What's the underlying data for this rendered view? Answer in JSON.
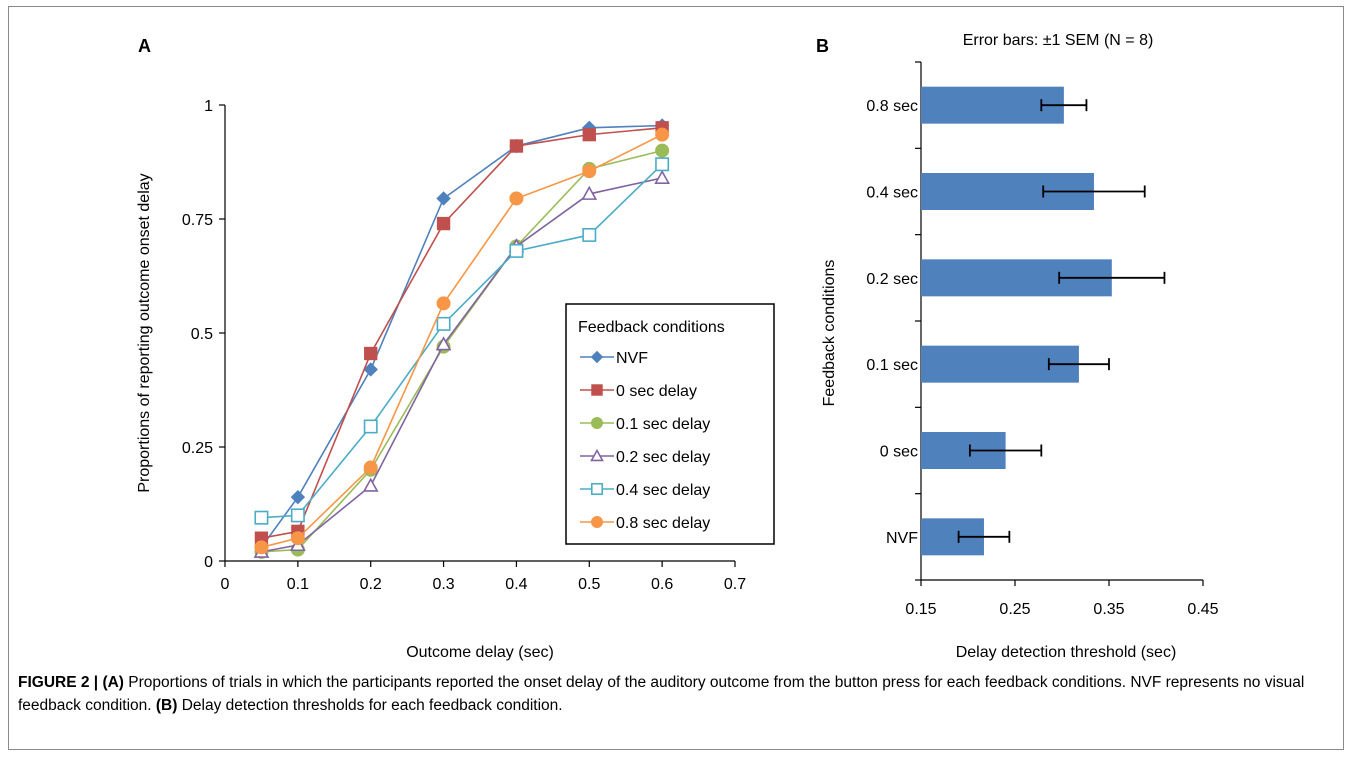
{
  "chart_data": [
    {
      "panel_label": "A",
      "type": "line",
      "title": "",
      "xlabel": "Outcome delay (sec)",
      "ylabel": "Proportions of reporting outcome onset delay",
      "xlim": [
        0,
        0.7
      ],
      "ylim": [
        0,
        1
      ],
      "x_ticks": [
        "0",
        "0.1",
        "0.2",
        "0.3",
        "0.4",
        "0.5",
        "0.6",
        "0.7"
      ],
      "x_tick_values": [
        0,
        0.1,
        0.2,
        0.3,
        0.4,
        0.5,
        0.6,
        0.7
      ],
      "y_ticks": [
        "0",
        "0.25",
        "0.5",
        "0.75",
        "1"
      ],
      "y_tick_values": [
        0,
        0.25,
        0.5,
        0.75,
        1
      ],
      "grid": false,
      "legend_title": "Feedback conditions",
      "legend_position": "bottom-right",
      "x": [
        0.05,
        0.1,
        0.2,
        0.3,
        0.4,
        0.5,
        0.6
      ],
      "series": [
        {
          "name": "NVF",
          "marker": "diamond",
          "filled": true,
          "color": "#4f81bd",
          "values": [
            0.03,
            0.14,
            0.42,
            0.795,
            0.91,
            0.95,
            0.955
          ]
        },
        {
          "name": "0 sec delay",
          "marker": "square",
          "filled": true,
          "color": "#c0504d",
          "values": [
            0.05,
            0.065,
            0.455,
            0.74,
            0.91,
            0.935,
            0.95
          ]
        },
        {
          "name": "0.1 sec delay",
          "marker": "circle",
          "filled": true,
          "color": "#9bbb59",
          "values": [
            0.02,
            0.025,
            0.2,
            0.47,
            0.69,
            0.86,
            0.9
          ]
        },
        {
          "name": "0.2 sec delay",
          "marker": "triangle",
          "filled": false,
          "color": "#8064a2",
          "values": [
            0.02,
            0.035,
            0.165,
            0.475,
            0.69,
            0.805,
            0.84
          ]
        },
        {
          "name": "0.4 sec delay",
          "marker": "square",
          "filled": false,
          "color": "#4bacc6",
          "values": [
            0.095,
            0.1,
            0.295,
            0.52,
            0.68,
            0.715,
            0.87
          ]
        },
        {
          "name": "0.8 sec delay",
          "marker": "circle",
          "filled": true,
          "color": "#f79646",
          "values": [
            0.03,
            0.05,
            0.205,
            0.565,
            0.795,
            0.855,
            0.935
          ]
        }
      ]
    },
    {
      "panel_label": "B",
      "type": "bar",
      "orientation": "horizontal",
      "title": "Error bars: ±1 SEM (N = 8)",
      "xlabel": "Delay detection threshold (sec)",
      "ylabel": "Feedback conditions",
      "xlim": [
        0.15,
        0.45
      ],
      "x_ticks": [
        "0.15",
        "0.25",
        "0.35",
        "0.45"
      ],
      "x_tick_values": [
        0.15,
        0.25,
        0.35,
        0.45
      ],
      "grid": false,
      "bar_color": "#4f81bd",
      "categories": [
        "0.8 sec",
        "0.4 sec",
        "0.2 sec",
        "0.1 sec",
        "0 sec",
        "NVF"
      ],
      "values": [
        0.302,
        0.334,
        0.353,
        0.318,
        0.24,
        0.217
      ],
      "errors": [
        0.024,
        0.054,
        0.056,
        0.032,
        0.038,
        0.027
      ]
    }
  ],
  "caption": {
    "head": "FIGURE 2 |",
    "a_label": "(A)",
    "a_text": "Proportions of trials in which the participants reported the onset delay of the auditory outcome from the button press for each feedback conditions. NVF represents no visual feedback condition.",
    "b_label": "(B)",
    "b_text": "Delay detection thresholds for each feedback condition."
  }
}
